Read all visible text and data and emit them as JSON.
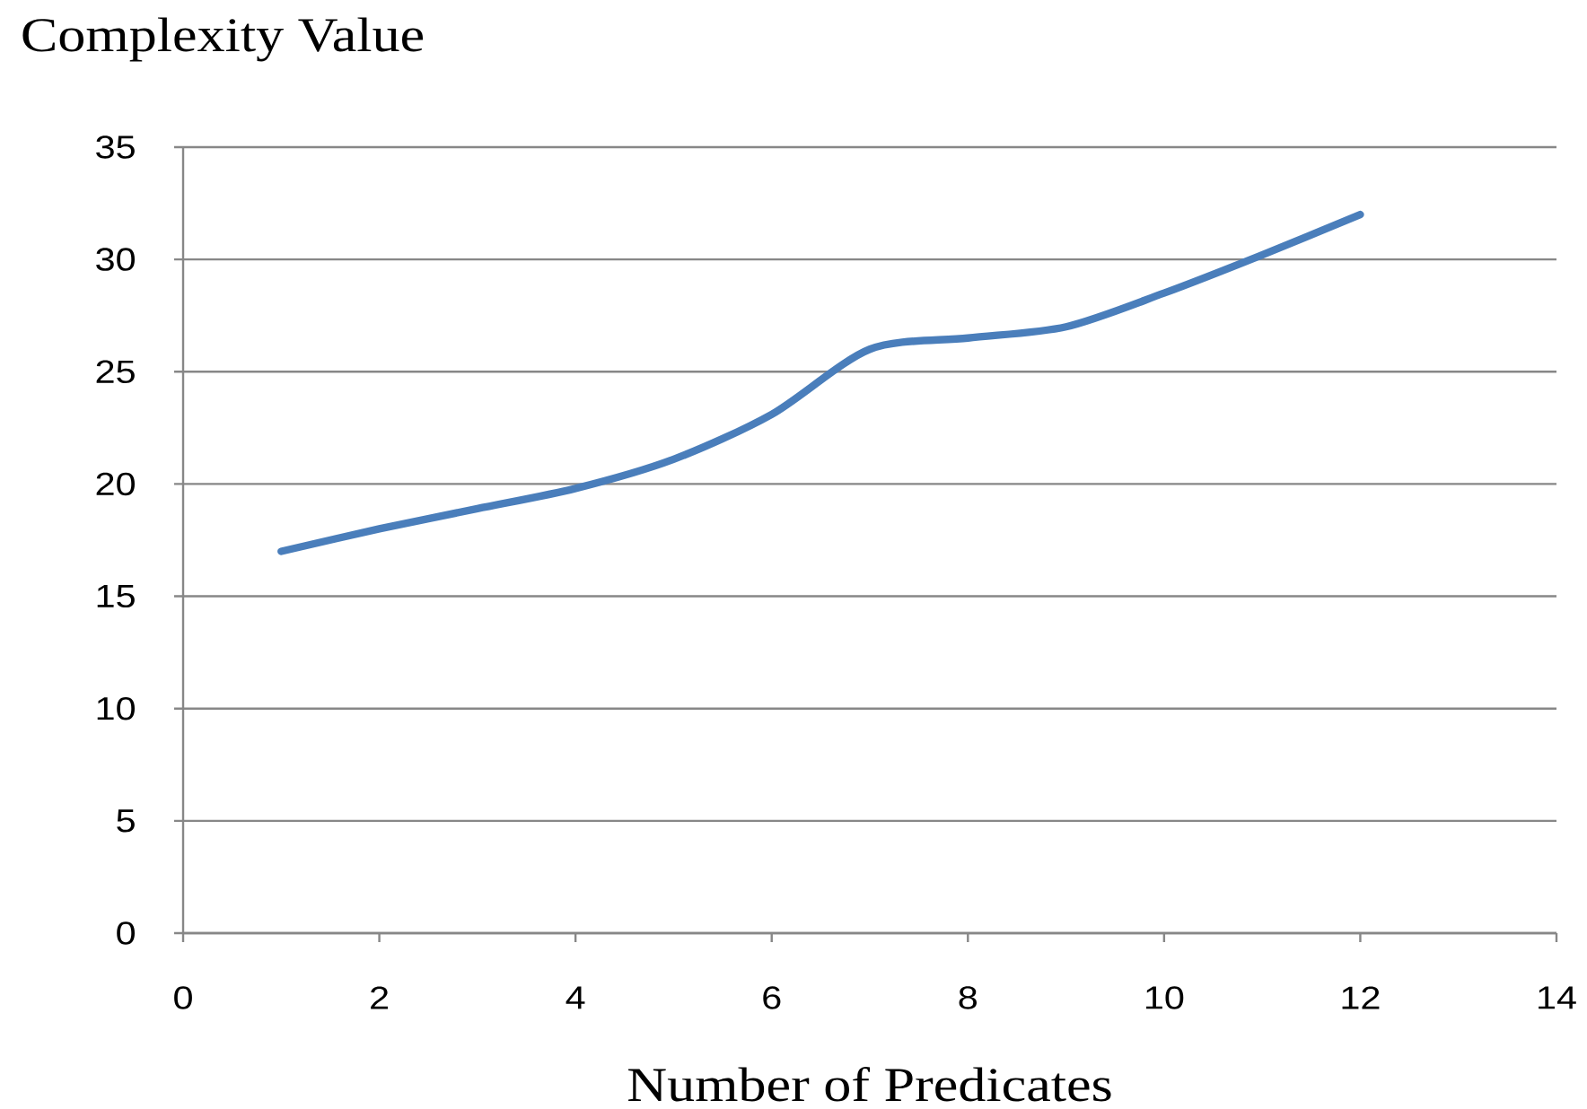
{
  "chart_data": {
    "type": "line",
    "xlabel": "Number of Predicates",
    "ylabel": "Complexity Value",
    "x": [
      1,
      2,
      3,
      4,
      5,
      6,
      7,
      8,
      9,
      10,
      11,
      12
    ],
    "series": [
      {
        "color": "#4a7ebb",
        "values": [
          17,
          18,
          18.9,
          19.8,
          21.1,
          23.1,
          26,
          26.5,
          27,
          28.5,
          30.2,
          32
        ]
      }
    ],
    "xlim": [
      0,
      14
    ],
    "ylim": [
      0,
      35
    ],
    "xticks": [
      0,
      2,
      4,
      6,
      8,
      10,
      12,
      14
    ],
    "yticks": [
      0,
      5,
      10,
      15,
      20,
      25,
      30,
      35
    ],
    "grid": "y",
    "line_style": "solid"
  }
}
